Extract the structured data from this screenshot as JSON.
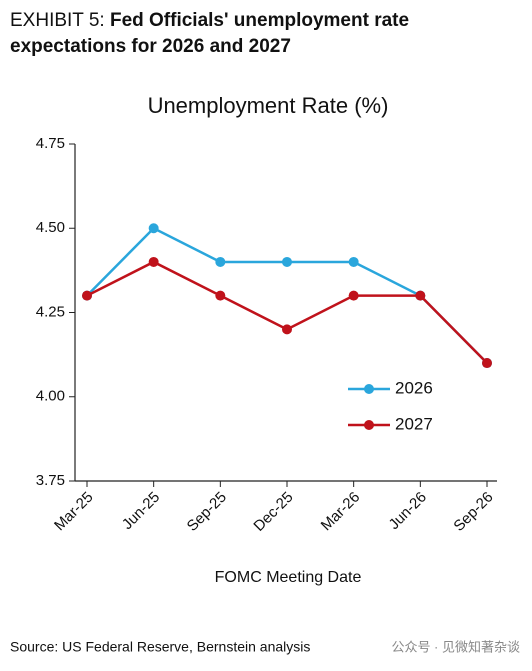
{
  "chart_data": {
    "type": "line",
    "exhibit": "EXHIBIT 5:",
    "heading": "Fed Officials' unemployment rate expectations for 2026 and 2027",
    "title": "Unemployment Rate (%)",
    "xlabel": "FOMC Meeting Date",
    "source": "Source: US Federal Reserve, Bernstein analysis",
    "watermark": "公众号 · 见微知著杂谈",
    "categories": [
      "Mar-25",
      "Jun-25",
      "Sep-25",
      "Dec-25",
      "Mar-26",
      "Jun-26",
      "Sep-26"
    ],
    "series": [
      {
        "name": "2026",
        "color": "#2aa6dc",
        "values": [
          4.3,
          4.5,
          4.4,
          4.4,
          4.4,
          4.3,
          4.1
        ]
      },
      {
        "name": "2027",
        "color": "#c0121b",
        "values": [
          4.3,
          4.4,
          4.3,
          4.2,
          4.3,
          4.3,
          4.1
        ]
      }
    ],
    "ylim": [
      3.75,
      4.75
    ],
    "yticks": [
      {
        "value": 3.75,
        "label": "3.75"
      },
      {
        "value": 4,
        "label": "4.00"
      },
      {
        "value": 4.25,
        "label": "4.25"
      },
      {
        "value": 4.5,
        "label": "4.50"
      },
      {
        "value": 4.75,
        "label": "4.75"
      }
    ],
    "grid": false,
    "legend": "right"
  }
}
